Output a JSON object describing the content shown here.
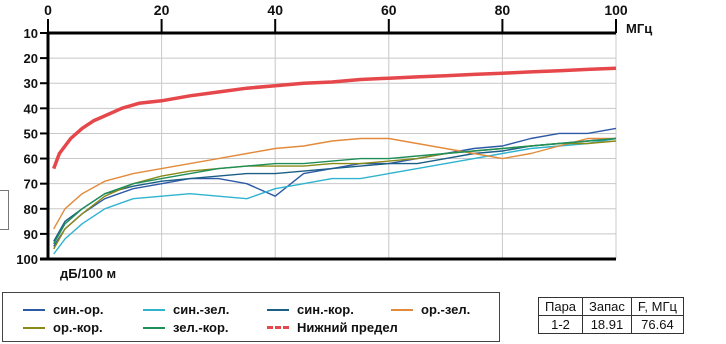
{
  "chart_data": {
    "type": "line",
    "x_unit": "МГц",
    "y_unit": "дБ/100 м",
    "xlim": [
      0,
      100
    ],
    "ylim": [
      10,
      100
    ],
    "y_inverted": true,
    "x_ticks": [
      0,
      20,
      40,
      60,
      80,
      100
    ],
    "y_ticks": [
      10,
      20,
      30,
      40,
      50,
      60,
      70,
      80,
      90,
      100
    ],
    "grid": true,
    "series": [
      {
        "name": "син.-ор.",
        "color": "#2d5aa6",
        "x": [
          1,
          3,
          6,
          10,
          15,
          20,
          25,
          30,
          35,
          40,
          45,
          50,
          55,
          60,
          65,
          70,
          75,
          80,
          85,
          90,
          95,
          100
        ],
        "y": [
          95,
          88,
          82,
          76,
          72,
          70,
          68,
          68,
          70,
          75,
          66,
          64,
          62,
          62,
          60,
          58,
          56,
          55,
          52,
          50,
          50,
          48
        ]
      },
      {
        "name": "син.-зел.",
        "color": "#2fb3cf",
        "x": [
          1,
          3,
          6,
          10,
          15,
          20,
          25,
          30,
          35,
          40,
          45,
          50,
          55,
          60,
          65,
          70,
          75,
          80,
          85,
          90,
          95,
          100
        ],
        "y": [
          98,
          92,
          86,
          80,
          76,
          75,
          74,
          75,
          76,
          72,
          70,
          68,
          68,
          66,
          64,
          62,
          60,
          58,
          56,
          55,
          54,
          52
        ]
      },
      {
        "name": "син.-кор.",
        "color": "#1c5f86",
        "x": [
          1,
          3,
          6,
          10,
          15,
          20,
          25,
          30,
          35,
          40,
          45,
          50,
          55,
          60,
          65,
          70,
          75,
          80,
          85,
          90,
          95,
          100
        ],
        "y": [
          93,
          85,
          80,
          74,
          71,
          69,
          68,
          67,
          66,
          66,
          65,
          64,
          63,
          62,
          62,
          60,
          58,
          57,
          55,
          54,
          53,
          52
        ]
      },
      {
        "name": "ор.-зел.",
        "color": "#e38b3c",
        "x": [
          1,
          3,
          6,
          10,
          15,
          20,
          25,
          30,
          35,
          40,
          45,
          50,
          55,
          60,
          65,
          70,
          75,
          80,
          85,
          90,
          95,
          100
        ],
        "y": [
          88,
          80,
          74,
          69,
          66,
          64,
          62,
          60,
          58,
          56,
          55,
          53,
          52,
          52,
          54,
          56,
          58,
          60,
          58,
          55,
          52,
          52
        ]
      },
      {
        "name": "ор.-кор.",
        "color": "#8a8a18",
        "x": [
          1,
          3,
          6,
          10,
          15,
          20,
          25,
          30,
          35,
          40,
          45,
          50,
          55,
          60,
          65,
          70,
          75,
          80,
          85,
          90,
          95,
          100
        ],
        "y": [
          96,
          88,
          82,
          75,
          70,
          67,
          65,
          64,
          63,
          63,
          63,
          62,
          62,
          61,
          60,
          58,
          57,
          56,
          55,
          54,
          54,
          53
        ]
      },
      {
        "name": "зел.-кор.",
        "color": "#1f8f5a",
        "x": [
          1,
          3,
          6,
          10,
          15,
          20,
          25,
          30,
          35,
          40,
          45,
          50,
          55,
          60,
          65,
          70,
          75,
          80,
          85,
          90,
          95,
          100
        ],
        "y": [
          94,
          86,
          80,
          74,
          70,
          68,
          66,
          64,
          63,
          62,
          62,
          61,
          60,
          60,
          59,
          58,
          57,
          56,
          55,
          54,
          53,
          52
        ]
      },
      {
        "name": "Нижний предел",
        "color": "#e5474b",
        "x": [
          1,
          2,
          4,
          6,
          8,
          10,
          13,
          16,
          20,
          25,
          30,
          35,
          40,
          45,
          50,
          55,
          60,
          65,
          70,
          75,
          80,
          85,
          90,
          95,
          100
        ],
        "y": [
          64,
          58,
          52,
          48,
          45,
          43,
          40,
          38,
          37,
          35,
          33.5,
          32,
          31,
          30,
          29.5,
          28.5,
          28,
          27.5,
          27,
          26.5,
          26,
          25.5,
          25,
          24.5,
          24
        ]
      }
    ],
    "table": {
      "headers": [
        "Пара",
        "Запас",
        "F, МГц"
      ],
      "rows": [
        [
          "1-2",
          "18.91",
          "76.64"
        ]
      ]
    }
  },
  "labels": {
    "x_unit": "МГц",
    "y_unit": "дБ/100 м"
  }
}
